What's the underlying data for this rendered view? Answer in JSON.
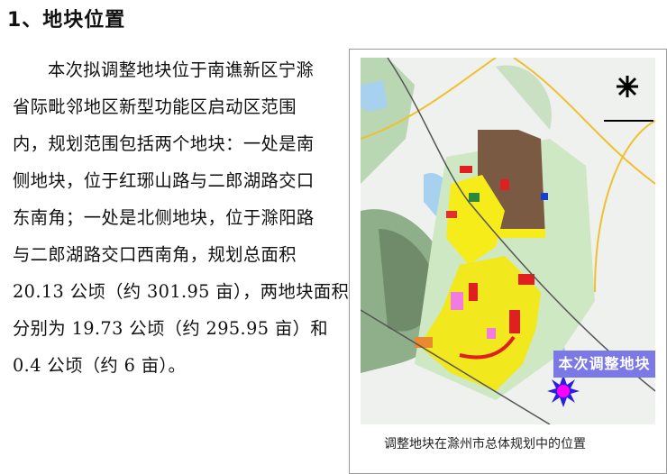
{
  "section": {
    "title": "1、地块位置"
  },
  "paragraph": {
    "lines": [
      "本次拟调整地块位于南谯新区宁滁",
      "省际毗邻地区新型功能区启动区范围",
      "内，规划范围包括两个地块：一处是南",
      "侧地块，位于红琊山路与二郎湖路交口",
      "东南角；一处是北侧地块，位于滁阳路",
      "与二郎湖路交口西南角，规划总面积",
      "20.13 公顷（约 301.95 亩），两地块面积",
      "分别为 19.73 公顷（约 295.95 亩）和",
      "0.4 公顷（约 6 亩）。"
    ]
  },
  "figure": {
    "map_label": "本次调整地块",
    "caption": "调整地块在滁州市总体规划中的位置",
    "icons": [
      "compass-icon",
      "site-marker-star-icon"
    ],
    "colors": {
      "label_bg": "#7a79e6",
      "marker": "#ff00ff",
      "marker_ring": "#2a1ee0"
    }
  }
}
